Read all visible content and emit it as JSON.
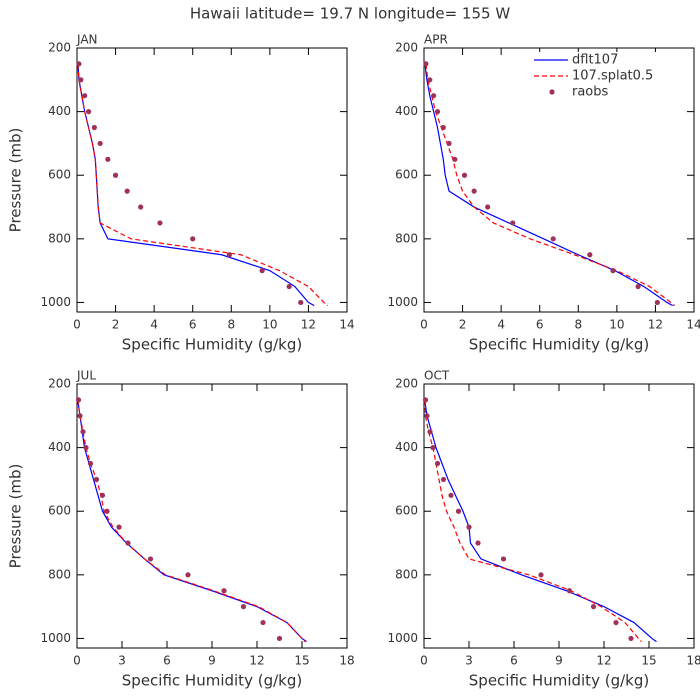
{
  "title": "Hawaii  latitude= 19.7 N longitude= 155 W",
  "chart_data": [
    {
      "type": "line",
      "title": "JAN",
      "xlabel": "Specific Humidity (g/kg)",
      "ylabel": "Pressure (mb)",
      "xlim": [
        0,
        14
      ],
      "xticks": [
        0,
        2,
        4,
        6,
        8,
        10,
        12,
        14
      ],
      "ylim": [
        200,
        1030
      ],
      "yticks": [
        200,
        400,
        600,
        800,
        1000
      ],
      "y_reverse": true,
      "levels": [
        250,
        300,
        350,
        400,
        450,
        500,
        550,
        600,
        650,
        700,
        750,
        800,
        850,
        900,
        950,
        1000,
        1010
      ],
      "series": [
        {
          "type": "line",
          "style": "solid",
          "color": "#0000ff",
          "values": [
            0.05,
            0.1,
            0.25,
            0.4,
            0.6,
            0.8,
            0.95,
            1.0,
            1.05,
            1.1,
            1.2,
            1.6,
            7.5,
            10.0,
            11.3,
            12.0,
            12.3
          ]
        },
        {
          "type": "line",
          "style": "dashed",
          "color": "#ff0000",
          "values": [
            0.05,
            0.1,
            0.25,
            0.4,
            0.6,
            0.8,
            0.95,
            1.0,
            1.05,
            1.1,
            1.2,
            2.8,
            8.5,
            10.5,
            12.0,
            12.8,
            13.0
          ]
        },
        {
          "type": "scatter",
          "color": "#a0325a",
          "values": [
            0.1,
            0.2,
            0.4,
            0.6,
            0.9,
            1.2,
            1.6,
            2.0,
            2.6,
            3.3,
            4.3,
            6.0,
            7.9,
            9.6,
            11.0,
            11.6,
            null
          ]
        }
      ]
    },
    {
      "type": "line",
      "title": "APR",
      "xlabel": "Specific Humidity (g/kg)",
      "xlim": [
        0,
        14
      ],
      "xticks": [
        0,
        2,
        4,
        6,
        8,
        10,
        12,
        14
      ],
      "ylim": [
        200,
        1030
      ],
      "yticks": [
        200,
        400,
        600,
        800,
        1000
      ],
      "y_reverse": true,
      "legend": "upper right",
      "levels": [
        250,
        300,
        350,
        400,
        450,
        500,
        550,
        600,
        650,
        700,
        750,
        800,
        850,
        900,
        950,
        1000,
        1010
      ],
      "series": [
        {
          "name": "dflt107",
          "type": "line",
          "style": "solid",
          "color": "#0000ff",
          "values": [
            0.05,
            0.15,
            0.3,
            0.5,
            0.7,
            0.85,
            1.0,
            1.1,
            1.3,
            2.6,
            4.4,
            6.2,
            8.0,
            9.9,
            11.4,
            12.6,
            12.9
          ]
        },
        {
          "name": "107.splat0.5",
          "type": "line",
          "style": "dashed",
          "color": "#ff0000",
          "values": [
            0.1,
            0.2,
            0.4,
            0.6,
            0.9,
            1.2,
            1.5,
            1.7,
            2.0,
            2.6,
            3.6,
            5.5,
            7.8,
            10.0,
            11.7,
            12.8,
            13.0
          ]
        },
        {
          "name": "raobs",
          "type": "scatter",
          "color": "#a0325a",
          "values": [
            0.1,
            0.3,
            0.5,
            0.7,
            1.0,
            1.3,
            1.6,
            2.1,
            2.6,
            3.3,
            4.6,
            6.7,
            8.6,
            9.8,
            11.1,
            12.1,
            null
          ]
        }
      ]
    },
    {
      "type": "line",
      "title": "JUL",
      "xlabel": "Specific Humidity (g/kg)",
      "ylabel": "Pressure (mb)",
      "xlim": [
        0,
        18
      ],
      "xticks": [
        0,
        3,
        6,
        9,
        12,
        15,
        18
      ],
      "ylim": [
        200,
        1030
      ],
      "yticks": [
        200,
        400,
        600,
        800,
        1000
      ],
      "y_reverse": true,
      "levels": [
        250,
        300,
        350,
        400,
        450,
        500,
        550,
        600,
        650,
        700,
        750,
        800,
        850,
        900,
        950,
        1000,
        1010
      ],
      "series": [
        {
          "type": "line",
          "style": "solid",
          "color": "#0000ff",
          "values": [
            0.05,
            0.2,
            0.35,
            0.5,
            0.8,
            1.1,
            1.4,
            1.7,
            2.3,
            3.3,
            4.5,
            5.8,
            9.0,
            12.0,
            14.0,
            15.0,
            15.3
          ]
        },
        {
          "type": "line",
          "style": "dashed",
          "color": "#ff0000",
          "values": [
            0.05,
            0.2,
            0.4,
            0.6,
            0.9,
            1.3,
            1.6,
            1.8,
            2.4,
            3.3,
            4.5,
            5.9,
            9.1,
            12.1,
            14.0,
            15.0,
            15.2
          ]
        },
        {
          "type": "scatter",
          "color": "#a0325a",
          "values": [
            0.1,
            0.2,
            0.4,
            0.6,
            0.9,
            1.3,
            1.7,
            2.0,
            2.8,
            3.4,
            4.9,
            7.4,
            9.8,
            11.1,
            12.4,
            13.5,
            null
          ]
        }
      ]
    },
    {
      "type": "line",
      "title": "OCT",
      "xlabel": "Specific Humidity (g/kg)",
      "xlim": [
        0,
        18
      ],
      "xticks": [
        0,
        3,
        6,
        9,
        12,
        15,
        18
      ],
      "ylim": [
        200,
        1030
      ],
      "yticks": [
        200,
        400,
        600,
        800,
        1000
      ],
      "y_reverse": true,
      "levels": [
        250,
        300,
        350,
        400,
        450,
        500,
        550,
        600,
        650,
        700,
        750,
        800,
        850,
        900,
        950,
        1000,
        1010
      ],
      "series": [
        {
          "type": "line",
          "style": "solid",
          "color": "#0000ff",
          "values": [
            0.05,
            0.2,
            0.5,
            0.8,
            1.2,
            1.6,
            2.1,
            2.6,
            3.0,
            3.1,
            3.8,
            6.5,
            9.5,
            12.0,
            14.0,
            15.2,
            15.5
          ]
        },
        {
          "type": "line",
          "style": "dashed",
          "color": "#ff0000",
          "values": [
            0.05,
            0.1,
            0.3,
            0.6,
            0.8,
            1.0,
            1.2,
            1.5,
            2.0,
            2.4,
            3.0,
            7.0,
            9.8,
            11.8,
            13.4,
            14.3,
            14.5
          ]
        },
        {
          "type": "scatter",
          "color": "#a0325a",
          "values": [
            0.1,
            0.2,
            0.4,
            0.6,
            0.9,
            1.3,
            1.8,
            2.3,
            3.0,
            3.6,
            5.3,
            7.8,
            9.7,
            11.3,
            12.8,
            13.8,
            null
          ]
        }
      ]
    }
  ]
}
